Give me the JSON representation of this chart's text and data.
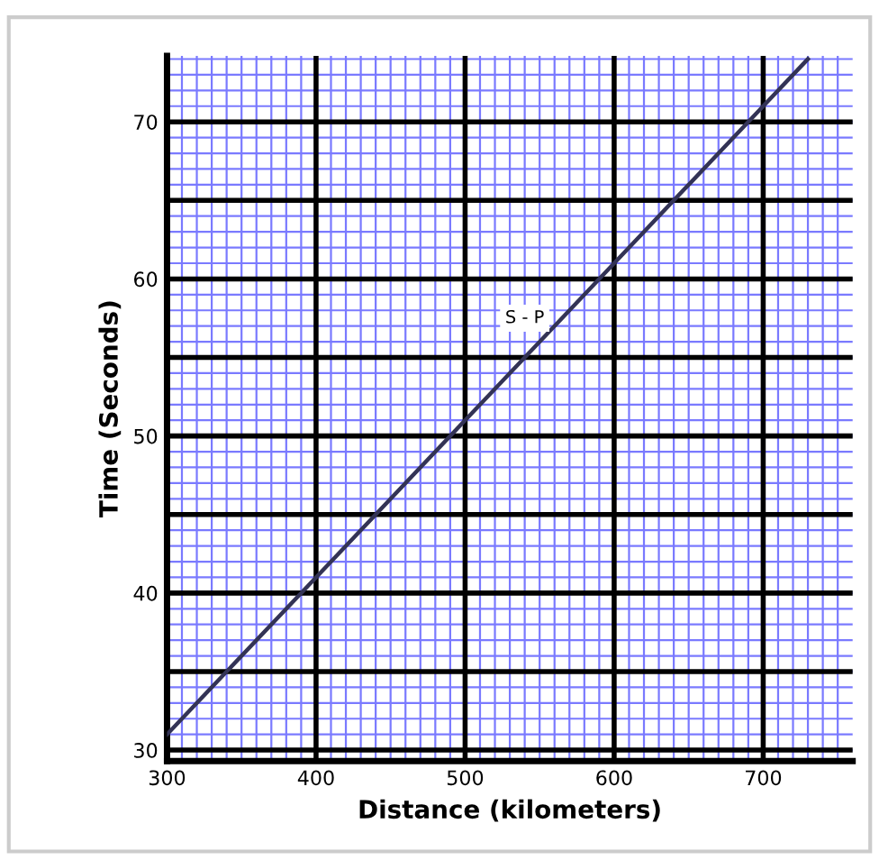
{
  "chart_data": {
    "type": "line",
    "xlabel": "Distance (kilometers)",
    "ylabel": "Time (Seconds)",
    "x": [
      300,
      400,
      500,
      600,
      700,
      730
    ],
    "series": [
      {
        "color": "#333355",
        "values": [
          31,
          41,
          51,
          61,
          71,
          74
        ]
      }
    ],
    "xlim": [
      300,
      760
    ],
    "ylim": [
      29.3,
      74.2
    ],
    "xticks": [
      300,
      400,
      500,
      600,
      700
    ],
    "yticks": [
      30,
      {
        "value": 35,
        "label": null
      },
      40,
      {
        "value": 45,
        "label": null
      },
      50,
      {
        "value": 55,
        "label": null
      },
      60,
      {
        "value": 65,
        "label": null
      },
      70
    ],
    "grid": true,
    "marker": "none",
    "line_style": "solid",
    "annotations": [
      {
        "text": "S - P",
        "x": 540,
        "y": 57.5
      }
    ]
  }
}
